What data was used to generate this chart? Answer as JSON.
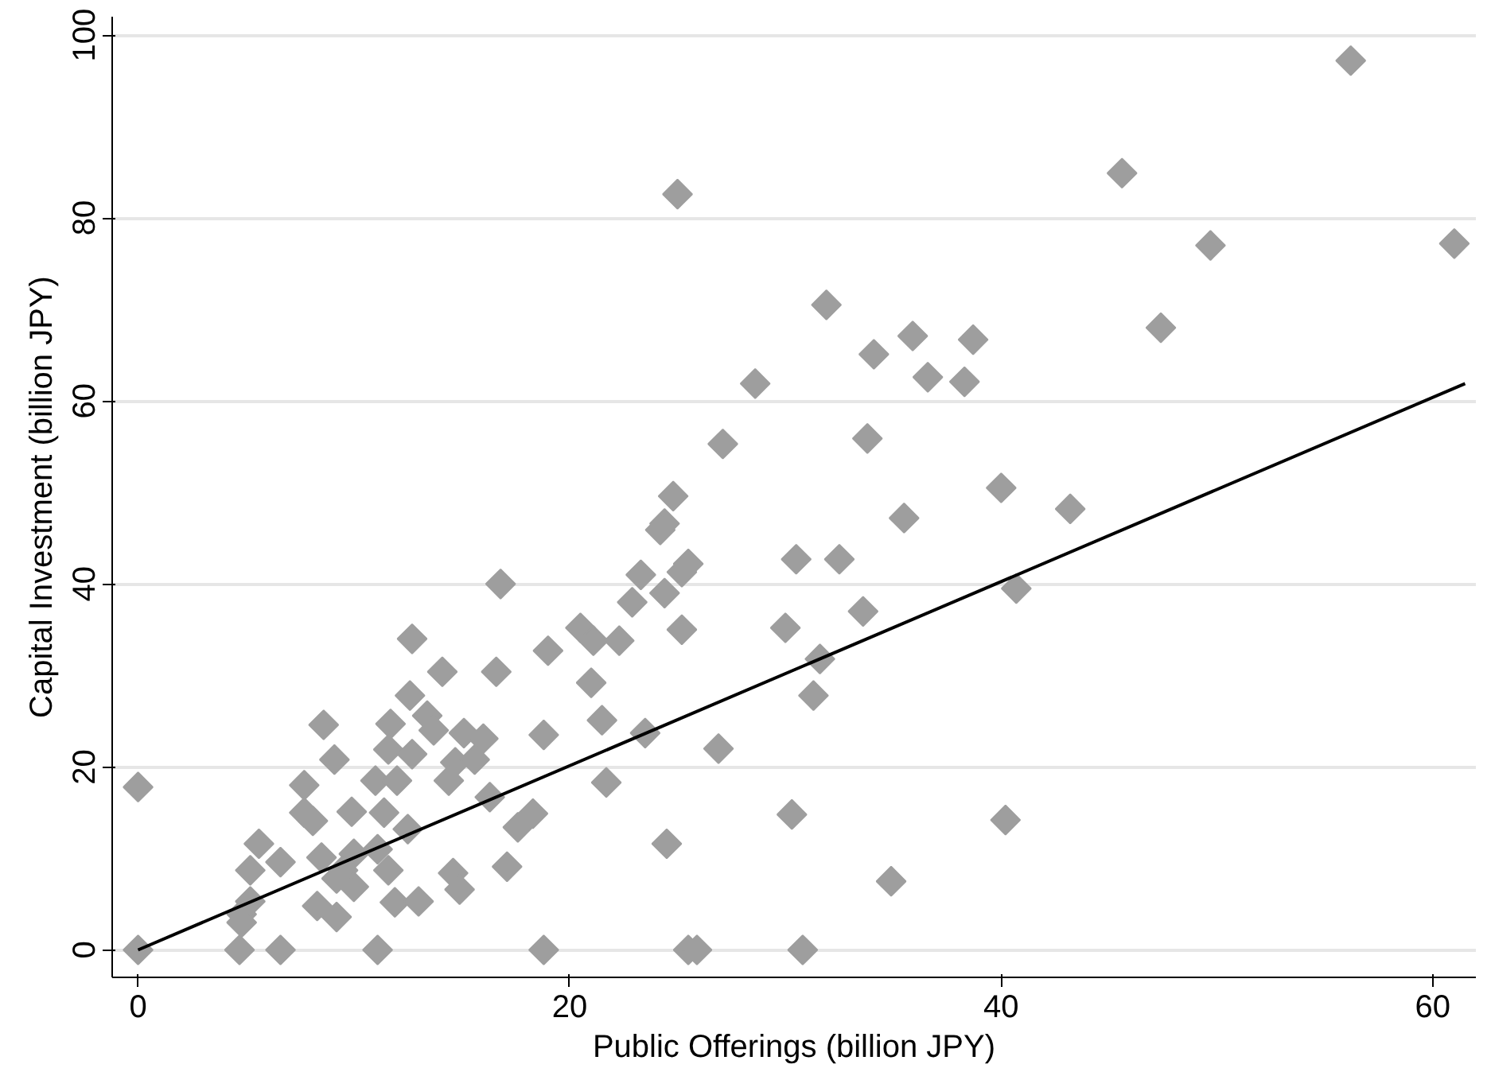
{
  "chart_data": {
    "type": "scatter",
    "xlabel": "Public Offerings (billion JPY)",
    "ylabel": "Capital Investment (billion JPY)",
    "xlim": [
      -1.2,
      62
    ],
    "ylim": [
      -3,
      102
    ],
    "xticks": [
      0,
      20,
      40,
      60
    ],
    "yticks": [
      0,
      20,
      40,
      60,
      80,
      100
    ],
    "grid": "y",
    "series": [
      {
        "color": "#9e9e9e",
        "marker": "diamond",
        "x": [
          0,
          4.7,
          6.6,
          11.1,
          18.8,
          25.5,
          25.9,
          30.8,
          0,
          16.8,
          12.7,
          14.1,
          16.6,
          19.0,
          20.5,
          12.6,
          8.6,
          11.7,
          13.4,
          13.7,
          15.1,
          16.0,
          18.8,
          9.1,
          11.6,
          12.7,
          14.7,
          15.6,
          11.0,
          12.0,
          14.4,
          7.7,
          16.3,
          9.9,
          11.4,
          7.7,
          8.1,
          12.5,
          17.6,
          18.3,
          5.6,
          6.6,
          5.2,
          8.5,
          10.0,
          9.5,
          11.1,
          11.6,
          10.0,
          9.2,
          14.6,
          14.9,
          17.1,
          8.3,
          9.2,
          11.9,
          13.0,
          4.8,
          4.8,
          5.2,
          28.6,
          36.6,
          38.3,
          27.1,
          33.8,
          24.8,
          24.4,
          24.2,
          35.5,
          30.5,
          32.5,
          25.5,
          25.2,
          23.3,
          22.9,
          24.4,
          25.2,
          30.0,
          33.6,
          21.1,
          22.3,
          21.0,
          31.6,
          31.3,
          21.5,
          23.5,
          26.9,
          21.7,
          24.5,
          30.3,
          34.9,
          56.2,
          45.6,
          49.7,
          61.0,
          47.4,
          38.7,
          40.0,
          43.2,
          40.7,
          40.2,
          31.9,
          34.1,
          35.9,
          25.0
        ],
        "values": [
          0,
          0,
          0,
          0,
          0,
          0,
          0,
          0,
          17.8,
          40.0,
          34.0,
          30.4,
          30.4,
          32.7,
          35.2,
          27.8,
          24.6,
          24.7,
          25.6,
          24.0,
          23.7,
          23.1,
          23.5,
          20.8,
          21.9,
          21.4,
          20.5,
          20.8,
          18.5,
          18.5,
          18.5,
          18.0,
          16.7,
          15.1,
          15.0,
          15.0,
          14.1,
          13.2,
          13.4,
          14.9,
          11.6,
          9.6,
          8.7,
          10.1,
          10.5,
          8.7,
          11.0,
          8.7,
          6.9,
          7.8,
          8.4,
          6.6,
          9.1,
          4.8,
          3.6,
          5.2,
          5.3,
          3.9,
          3.0,
          5.3,
          61.9,
          62.6,
          62.1,
          55.3,
          55.9,
          49.6,
          46.6,
          45.9,
          47.2,
          42.7,
          42.7,
          42.2,
          41.3,
          41.0,
          38.0,
          39.0,
          35.0,
          35.2,
          37.0,
          33.8,
          33.8,
          29.2,
          31.8,
          27.8,
          25.1,
          23.7,
          22.0,
          18.3,
          11.6,
          14.8,
          7.5,
          97.2,
          84.9,
          77.0,
          77.2,
          68.0,
          66.7,
          50.5,
          48.2,
          39.5,
          14.2,
          70.5,
          65.1,
          67.1,
          82.6
        ]
      },
      {
        "type": "line",
        "color": "#000000",
        "x": [
          0,
          61.5
        ],
        "values": [
          0,
          61.9
        ]
      }
    ]
  }
}
